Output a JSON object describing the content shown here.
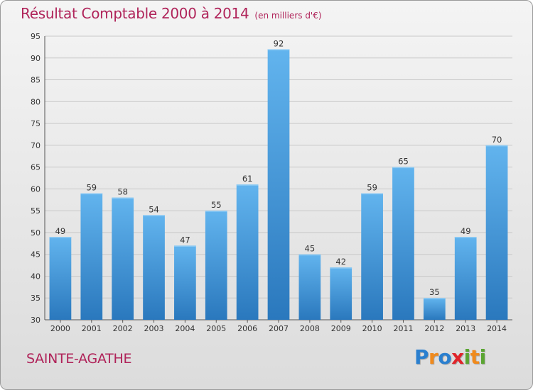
{
  "chart_data": {
    "type": "bar",
    "title": "Résultat Comptable 2000 à 2014",
    "subtitle": "(en milliers d'€)",
    "categories": [
      "2000",
      "2001",
      "2002",
      "2003",
      "2004",
      "2005",
      "2006",
      "2007",
      "2008",
      "2009",
      "2010",
      "2011",
      "2012",
      "2013",
      "2014"
    ],
    "values": [
      49,
      59,
      58,
      54,
      47,
      55,
      61,
      92,
      45,
      42,
      59,
      65,
      35,
      49,
      70
    ],
    "ylim": [
      30,
      95
    ],
    "yticks": [
      30,
      35,
      40,
      45,
      50,
      55,
      60,
      65,
      70,
      75,
      80,
      85,
      90,
      95
    ],
    "xlabel": "",
    "ylabel": "",
    "grid": true,
    "legend": "none"
  },
  "footer": {
    "commune": "SAINTE-AGATHE",
    "logo_letters": [
      "P",
      "r",
      "o",
      "x",
      "i",
      "t",
      "i"
    ]
  },
  "colors": {
    "title": "#b0245a",
    "bar_light": "#62b4ee",
    "bar_dark": "#2a78bd",
    "logo": [
      "#2a7fcf",
      "#f08a1c",
      "#2a7fcf",
      "#e0242a",
      "#5aa531",
      "#f08a1c",
      "#5aa531"
    ]
  }
}
